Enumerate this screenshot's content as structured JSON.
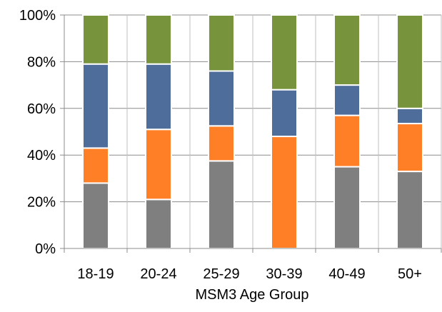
{
  "chart_data": {
    "type": "bar",
    "stacked": true,
    "stack_mode": "percent",
    "xlabel": "MSM3 Age Group",
    "ylabel": "",
    "ylim": [
      0,
      100
    ],
    "y_ticks": [
      "0%",
      "20%",
      "40%",
      "60%",
      "80%",
      "100%"
    ],
    "grid": true,
    "categories": [
      "18-19",
      "20-24",
      "25-29",
      "30-39",
      "40-49",
      "50+"
    ],
    "series": [
      {
        "color": "#7f7f7f",
        "values": [
          28,
          21,
          37.5,
          0,
          35,
          33
        ]
      },
      {
        "color": "#ff7f27",
        "values": [
          15,
          30,
          15,
          48,
          22,
          20.5
        ]
      },
      {
        "color": "#4f6d9a",
        "values": [
          36,
          28,
          23.5,
          20,
          13,
          6.5
        ]
      },
      {
        "color": "#77933c",
        "values": [
          21,
          21,
          24,
          32,
          30,
          40
        ]
      }
    ]
  }
}
